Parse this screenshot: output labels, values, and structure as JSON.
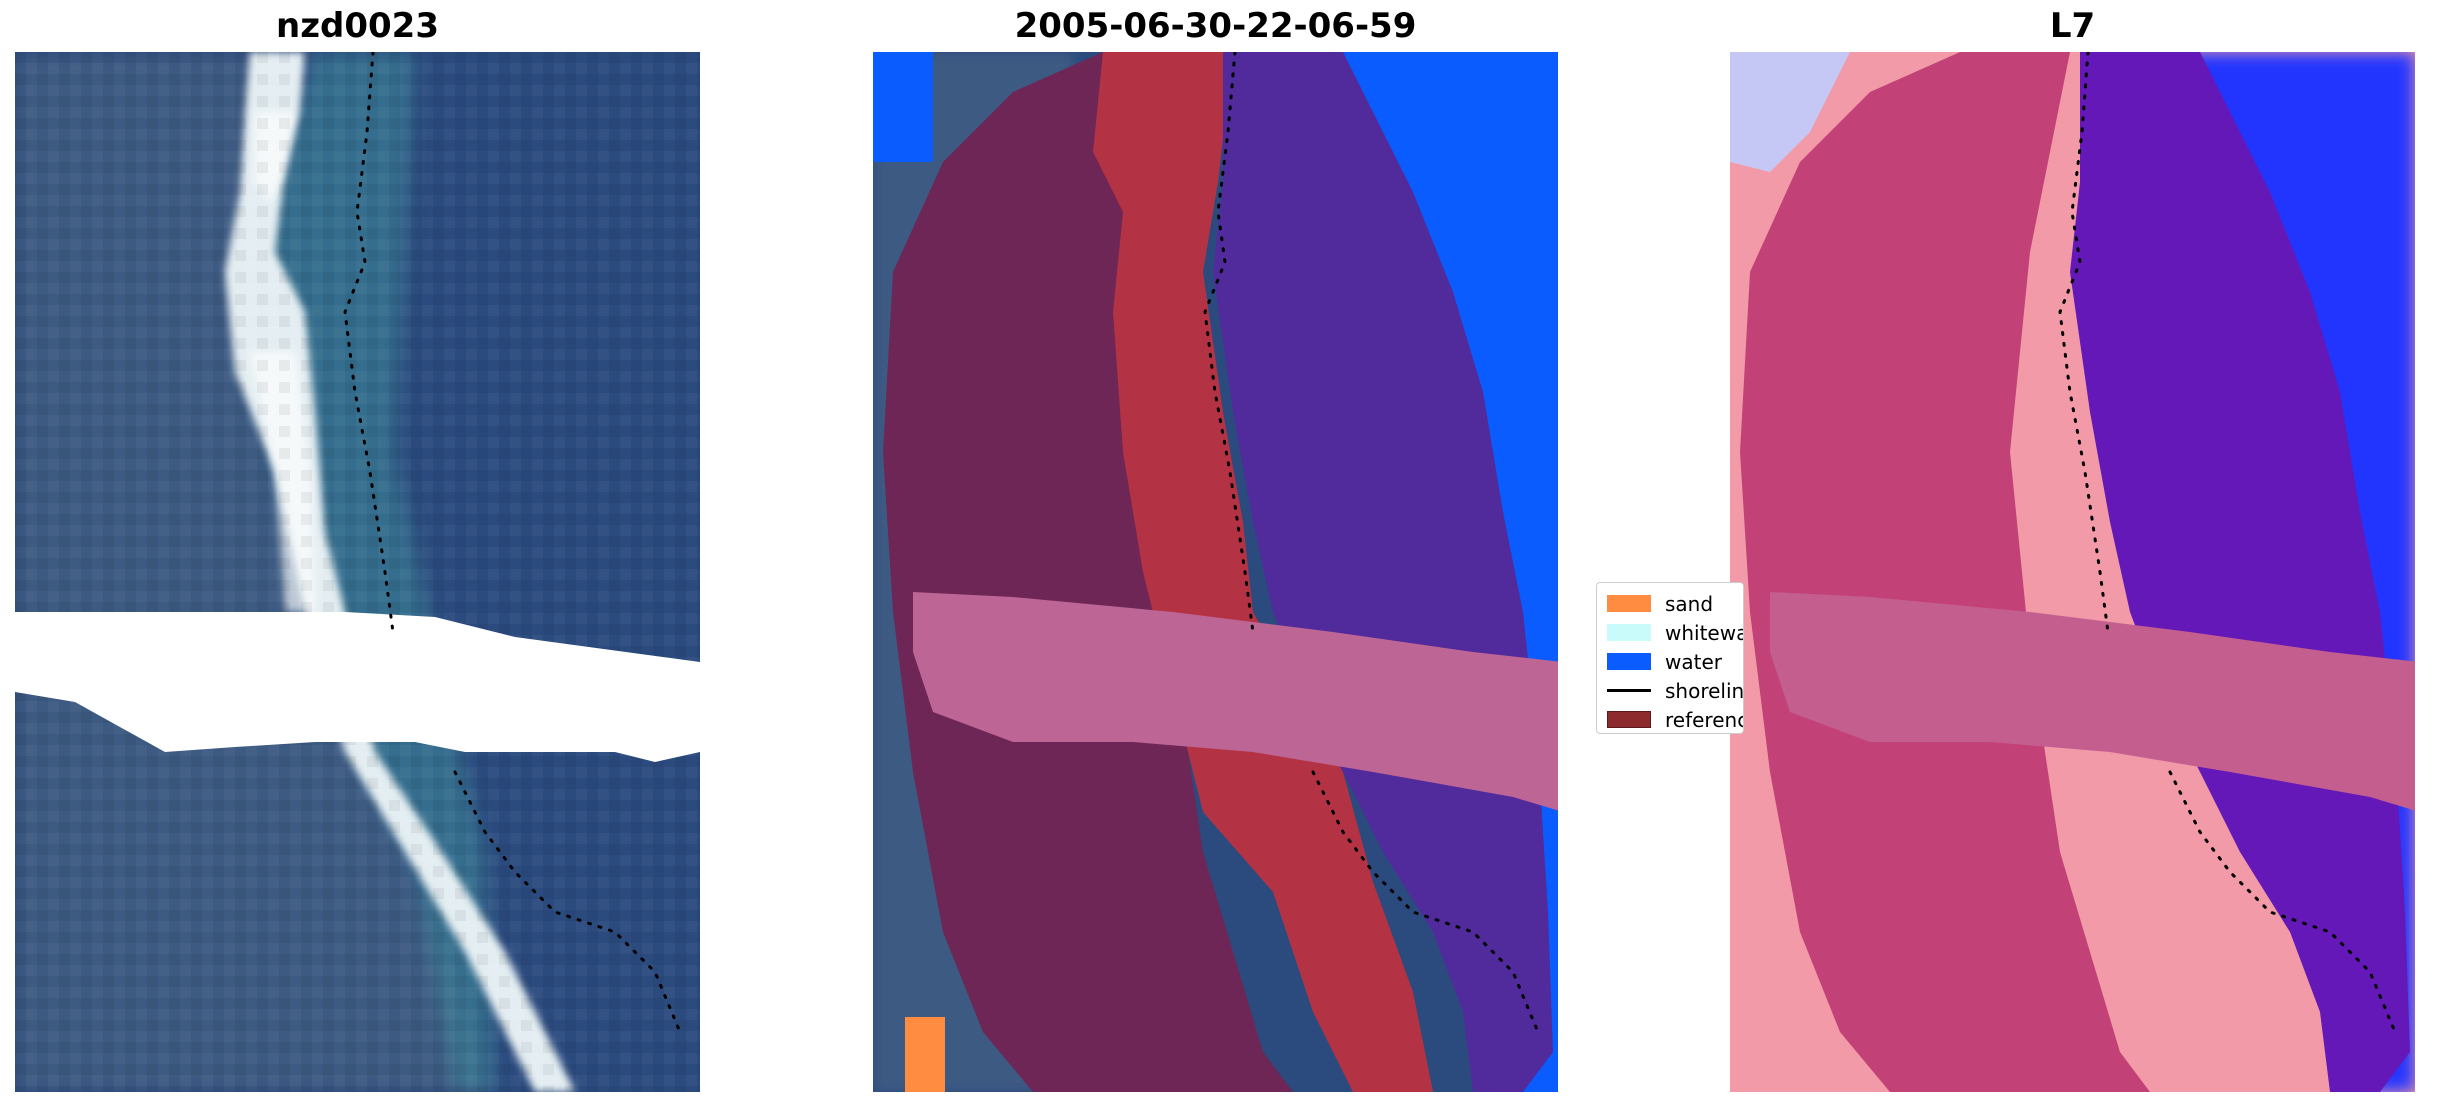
{
  "panels": [
    {
      "title": "nzd0023",
      "layer": "rgb-satellite-image"
    },
    {
      "title": "2005-06-30-22-06-59",
      "layer": "classified-image"
    },
    {
      "title": "L7",
      "layer": "water-index-image"
    }
  ],
  "legend": {
    "items": [
      {
        "label": "sand",
        "color": "#ff8c40",
        "kind": "patch"
      },
      {
        "label": "whitewater",
        "color": "#c9fbfb",
        "kind": "patch"
      },
      {
        "label": "water",
        "color": "#0a5cff",
        "kind": "patch"
      },
      {
        "label": "shoreline",
        "color": "#000000",
        "kind": "line"
      },
      {
        "label": "reference shoreline buffer",
        "color": "#8c2a2e",
        "kind": "patch"
      }
    ]
  },
  "colors": {
    "ocean": "#2b4a7e",
    "land": "#3c5a82",
    "beach": "#e4eef2",
    "water_class": "#0a5cff",
    "sea_buffer": "#512a9b",
    "sand_buffer": "#b33344",
    "land_buffer": "#6d2656",
    "cloud_strip": "#bd6595",
    "sand_class": "#ff8c40",
    "index_land": "#f29aa8",
    "index_buffer": "#c24278",
    "index_sea": "#6418b8",
    "index_ocean": "#2236ff"
  }
}
